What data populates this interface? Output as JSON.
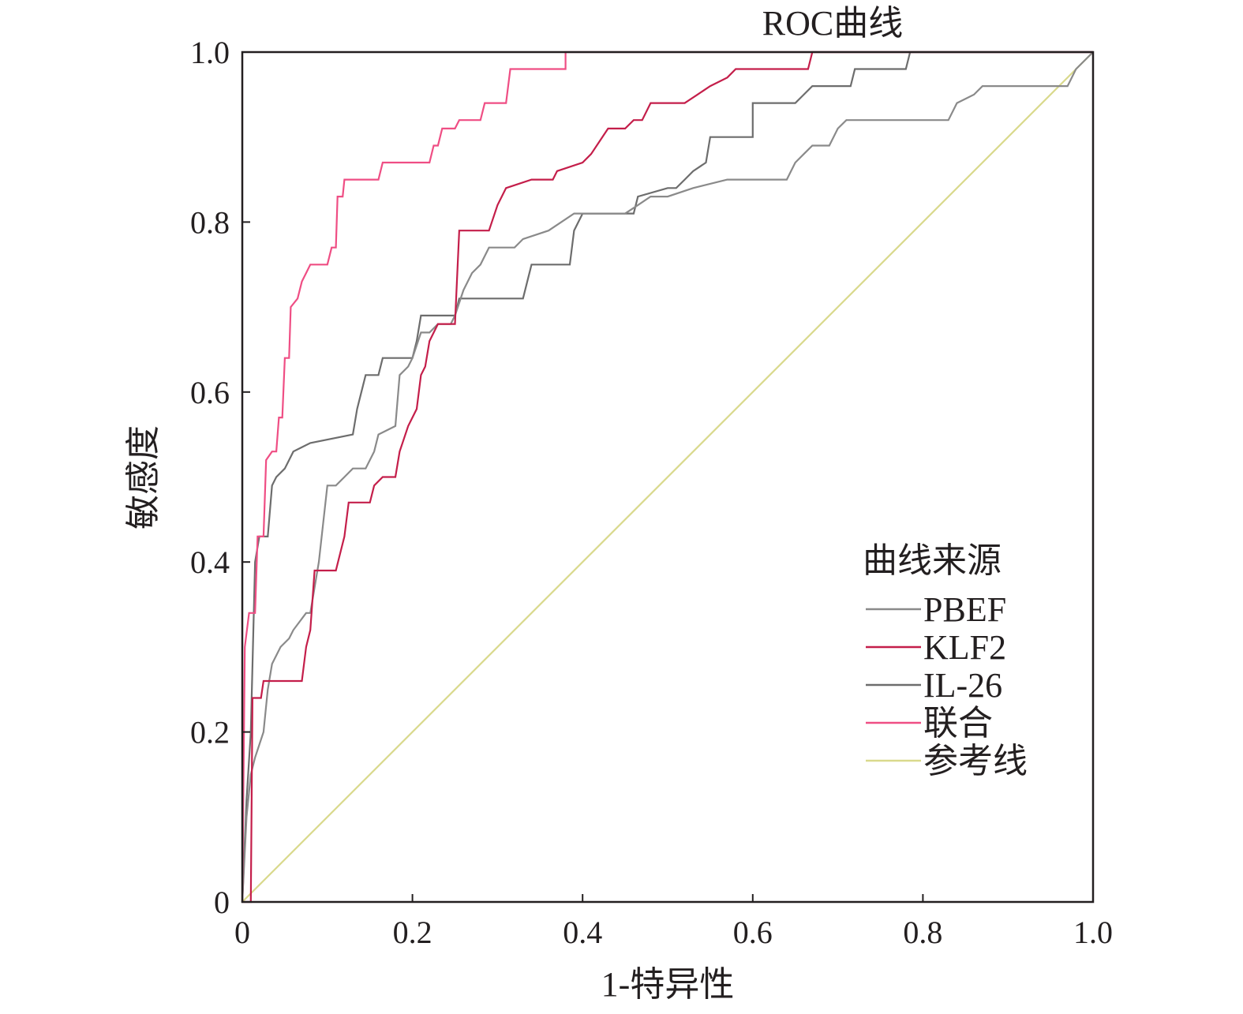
{
  "chart_data": {
    "type": "line",
    "title": "ROC曲线",
    "xlabel": "1-特异性",
    "ylabel": "敏感度",
    "xlim": [
      0,
      1
    ],
    "ylim": [
      0,
      1
    ],
    "x_ticks": [
      "0",
      "0.2",
      "0.4",
      "0.6",
      "0.8",
      "1.0"
    ],
    "y_ticks": [
      "0",
      "0.2",
      "0.4",
      "0.6",
      "0.8",
      "1.0"
    ],
    "grid": false,
    "legend": {
      "title": "曲线来源",
      "placement": "bottom-right"
    },
    "series": [
      {
        "name": "PBEF",
        "color": "#8a8a8a",
        "points": [
          [
            0,
            0
          ],
          [
            0.005,
            0.1
          ],
          [
            0.01,
            0.15
          ],
          [
            0.015,
            0.17
          ],
          [
            0.025,
            0.2
          ],
          [
            0.03,
            0.25
          ],
          [
            0.035,
            0.28
          ],
          [
            0.045,
            0.3
          ],
          [
            0.055,
            0.31
          ],
          [
            0.06,
            0.32
          ],
          [
            0.075,
            0.34
          ],
          [
            0.08,
            0.34
          ],
          [
            0.09,
            0.4
          ],
          [
            0.1,
            0.49
          ],
          [
            0.11,
            0.49
          ],
          [
            0.12,
            0.5
          ],
          [
            0.13,
            0.51
          ],
          [
            0.145,
            0.51
          ],
          [
            0.155,
            0.53
          ],
          [
            0.16,
            0.55
          ],
          [
            0.18,
            0.56
          ],
          [
            0.185,
            0.62
          ],
          [
            0.195,
            0.63
          ],
          [
            0.2,
            0.64
          ],
          [
            0.21,
            0.67
          ],
          [
            0.22,
            0.67
          ],
          [
            0.23,
            0.68
          ],
          [
            0.245,
            0.68
          ],
          [
            0.25,
            0.69
          ],
          [
            0.26,
            0.72
          ],
          [
            0.27,
            0.74
          ],
          [
            0.28,
            0.75
          ],
          [
            0.29,
            0.77
          ],
          [
            0.32,
            0.77
          ],
          [
            0.33,
            0.78
          ],
          [
            0.36,
            0.79
          ],
          [
            0.39,
            0.81
          ],
          [
            0.45,
            0.81
          ],
          [
            0.465,
            0.82
          ],
          [
            0.48,
            0.83
          ],
          [
            0.5,
            0.83
          ],
          [
            0.53,
            0.84
          ],
          [
            0.57,
            0.85
          ],
          [
            0.64,
            0.85
          ],
          [
            0.65,
            0.87
          ],
          [
            0.66,
            0.88
          ],
          [
            0.67,
            0.89
          ],
          [
            0.69,
            0.89
          ],
          [
            0.7,
            0.91
          ],
          [
            0.71,
            0.92
          ],
          [
            0.83,
            0.92
          ],
          [
            0.84,
            0.94
          ],
          [
            0.86,
            0.95
          ],
          [
            0.87,
            0.96
          ],
          [
            0.97,
            0.96
          ],
          [
            0.98,
            0.98
          ],
          [
            1.0,
            1.0
          ]
        ]
      },
      {
        "name": "KLF2",
        "color": "#c41e4a",
        "points": [
          [
            0,
            0
          ],
          [
            0.01,
            0.0
          ],
          [
            0.012,
            0.24
          ],
          [
            0.022,
            0.24
          ],
          [
            0.025,
            0.26
          ],
          [
            0.07,
            0.26
          ],
          [
            0.075,
            0.3
          ],
          [
            0.08,
            0.32
          ],
          [
            0.085,
            0.39
          ],
          [
            0.11,
            0.39
          ],
          [
            0.115,
            0.41
          ],
          [
            0.12,
            0.43
          ],
          [
            0.125,
            0.47
          ],
          [
            0.15,
            0.47
          ],
          [
            0.155,
            0.49
          ],
          [
            0.165,
            0.5
          ],
          [
            0.18,
            0.5
          ],
          [
            0.185,
            0.53
          ],
          [
            0.195,
            0.56
          ],
          [
            0.205,
            0.58
          ],
          [
            0.21,
            0.62
          ],
          [
            0.215,
            0.63
          ],
          [
            0.22,
            0.66
          ],
          [
            0.23,
            0.68
          ],
          [
            0.25,
            0.68
          ],
          [
            0.255,
            0.79
          ],
          [
            0.29,
            0.79
          ],
          [
            0.3,
            0.82
          ],
          [
            0.305,
            0.83
          ],
          [
            0.31,
            0.84
          ],
          [
            0.34,
            0.85
          ],
          [
            0.365,
            0.85
          ],
          [
            0.37,
            0.86
          ],
          [
            0.4,
            0.87
          ],
          [
            0.41,
            0.88
          ],
          [
            0.43,
            0.91
          ],
          [
            0.45,
            0.91
          ],
          [
            0.46,
            0.92
          ],
          [
            0.47,
            0.92
          ],
          [
            0.48,
            0.94
          ],
          [
            0.52,
            0.94
          ],
          [
            0.535,
            0.95
          ],
          [
            0.55,
            0.96
          ],
          [
            0.57,
            0.97
          ],
          [
            0.58,
            0.98
          ],
          [
            0.665,
            0.98
          ],
          [
            0.67,
            1.0
          ],
          [
            1.0,
            1.0
          ]
        ]
      },
      {
        "name": "IL-26",
        "color": "#6d6d6d",
        "points": [
          [
            0,
            0
          ],
          [
            0.005,
            0.12
          ],
          [
            0.01,
            0.2
          ],
          [
            0.015,
            0.4
          ],
          [
            0.02,
            0.43
          ],
          [
            0.03,
            0.43
          ],
          [
            0.035,
            0.49
          ],
          [
            0.04,
            0.5
          ],
          [
            0.05,
            0.51
          ],
          [
            0.055,
            0.52
          ],
          [
            0.06,
            0.53
          ],
          [
            0.08,
            0.54
          ],
          [
            0.13,
            0.55
          ],
          [
            0.135,
            0.58
          ],
          [
            0.14,
            0.6
          ],
          [
            0.145,
            0.62
          ],
          [
            0.16,
            0.62
          ],
          [
            0.165,
            0.64
          ],
          [
            0.2,
            0.64
          ],
          [
            0.205,
            0.66
          ],
          [
            0.21,
            0.69
          ],
          [
            0.25,
            0.69
          ],
          [
            0.255,
            0.71
          ],
          [
            0.26,
            0.71
          ],
          [
            0.33,
            0.71
          ],
          [
            0.335,
            0.73
          ],
          [
            0.34,
            0.75
          ],
          [
            0.385,
            0.75
          ],
          [
            0.39,
            0.79
          ],
          [
            0.4,
            0.81
          ],
          [
            0.46,
            0.81
          ],
          [
            0.465,
            0.83
          ],
          [
            0.5,
            0.84
          ],
          [
            0.51,
            0.84
          ],
          [
            0.52,
            0.85
          ],
          [
            0.53,
            0.86
          ],
          [
            0.545,
            0.87
          ],
          [
            0.55,
            0.9
          ],
          [
            0.6,
            0.9
          ],
          [
            0.6,
            0.94
          ],
          [
            0.65,
            0.94
          ],
          [
            0.66,
            0.95
          ],
          [
            0.67,
            0.96
          ],
          [
            0.715,
            0.96
          ],
          [
            0.72,
            0.98
          ],
          [
            0.78,
            0.98
          ],
          [
            0.785,
            1.0
          ],
          [
            1.0,
            1.0
          ]
        ]
      },
      {
        "name": "联合",
        "color": "#ef4e84",
        "points": [
          [
            0,
            0
          ],
          [
            0.003,
            0.3
          ],
          [
            0.008,
            0.34
          ],
          [
            0.015,
            0.34
          ],
          [
            0.018,
            0.43
          ],
          [
            0.025,
            0.43
          ],
          [
            0.028,
            0.52
          ],
          [
            0.035,
            0.53
          ],
          [
            0.04,
            0.53
          ],
          [
            0.043,
            0.57
          ],
          [
            0.047,
            0.57
          ],
          [
            0.05,
            0.64
          ],
          [
            0.055,
            0.64
          ],
          [
            0.057,
            0.7
          ],
          [
            0.065,
            0.71
          ],
          [
            0.07,
            0.73
          ],
          [
            0.075,
            0.74
          ],
          [
            0.08,
            0.75
          ],
          [
            0.1,
            0.75
          ],
          [
            0.105,
            0.77
          ],
          [
            0.11,
            0.77
          ],
          [
            0.112,
            0.83
          ],
          [
            0.118,
            0.83
          ],
          [
            0.12,
            0.85
          ],
          [
            0.16,
            0.85
          ],
          [
            0.165,
            0.87
          ],
          [
            0.22,
            0.87
          ],
          [
            0.225,
            0.89
          ],
          [
            0.23,
            0.89
          ],
          [
            0.235,
            0.91
          ],
          [
            0.25,
            0.91
          ],
          [
            0.255,
            0.92
          ],
          [
            0.28,
            0.92
          ],
          [
            0.285,
            0.94
          ],
          [
            0.31,
            0.94
          ],
          [
            0.315,
            0.98
          ],
          [
            0.38,
            0.98
          ],
          [
            0.38,
            1.0
          ],
          [
            1.0,
            1.0
          ]
        ]
      },
      {
        "name": "参考线",
        "color": "#d9d98c",
        "points": [
          [
            0,
            0
          ],
          [
            1,
            1
          ]
        ]
      }
    ]
  }
}
